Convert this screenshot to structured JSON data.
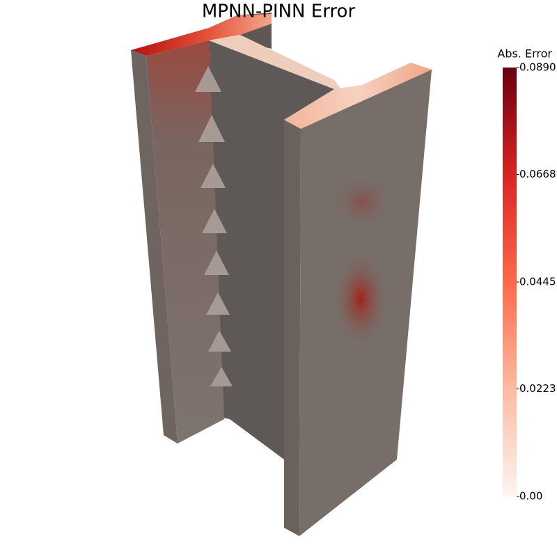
{
  "title": "MPNN-PINN Error",
  "colorbar": {
    "title": "Abs. Error",
    "range": [
      0,
      0.089
    ],
    "ticks": [
      {
        "value": 0,
        "label": "0.00"
      },
      0.0223,
      0.0445,
      0.0668,
      {
        "value": 0.089,
        "label": "0.0890"
      }
    ]
  }
}
